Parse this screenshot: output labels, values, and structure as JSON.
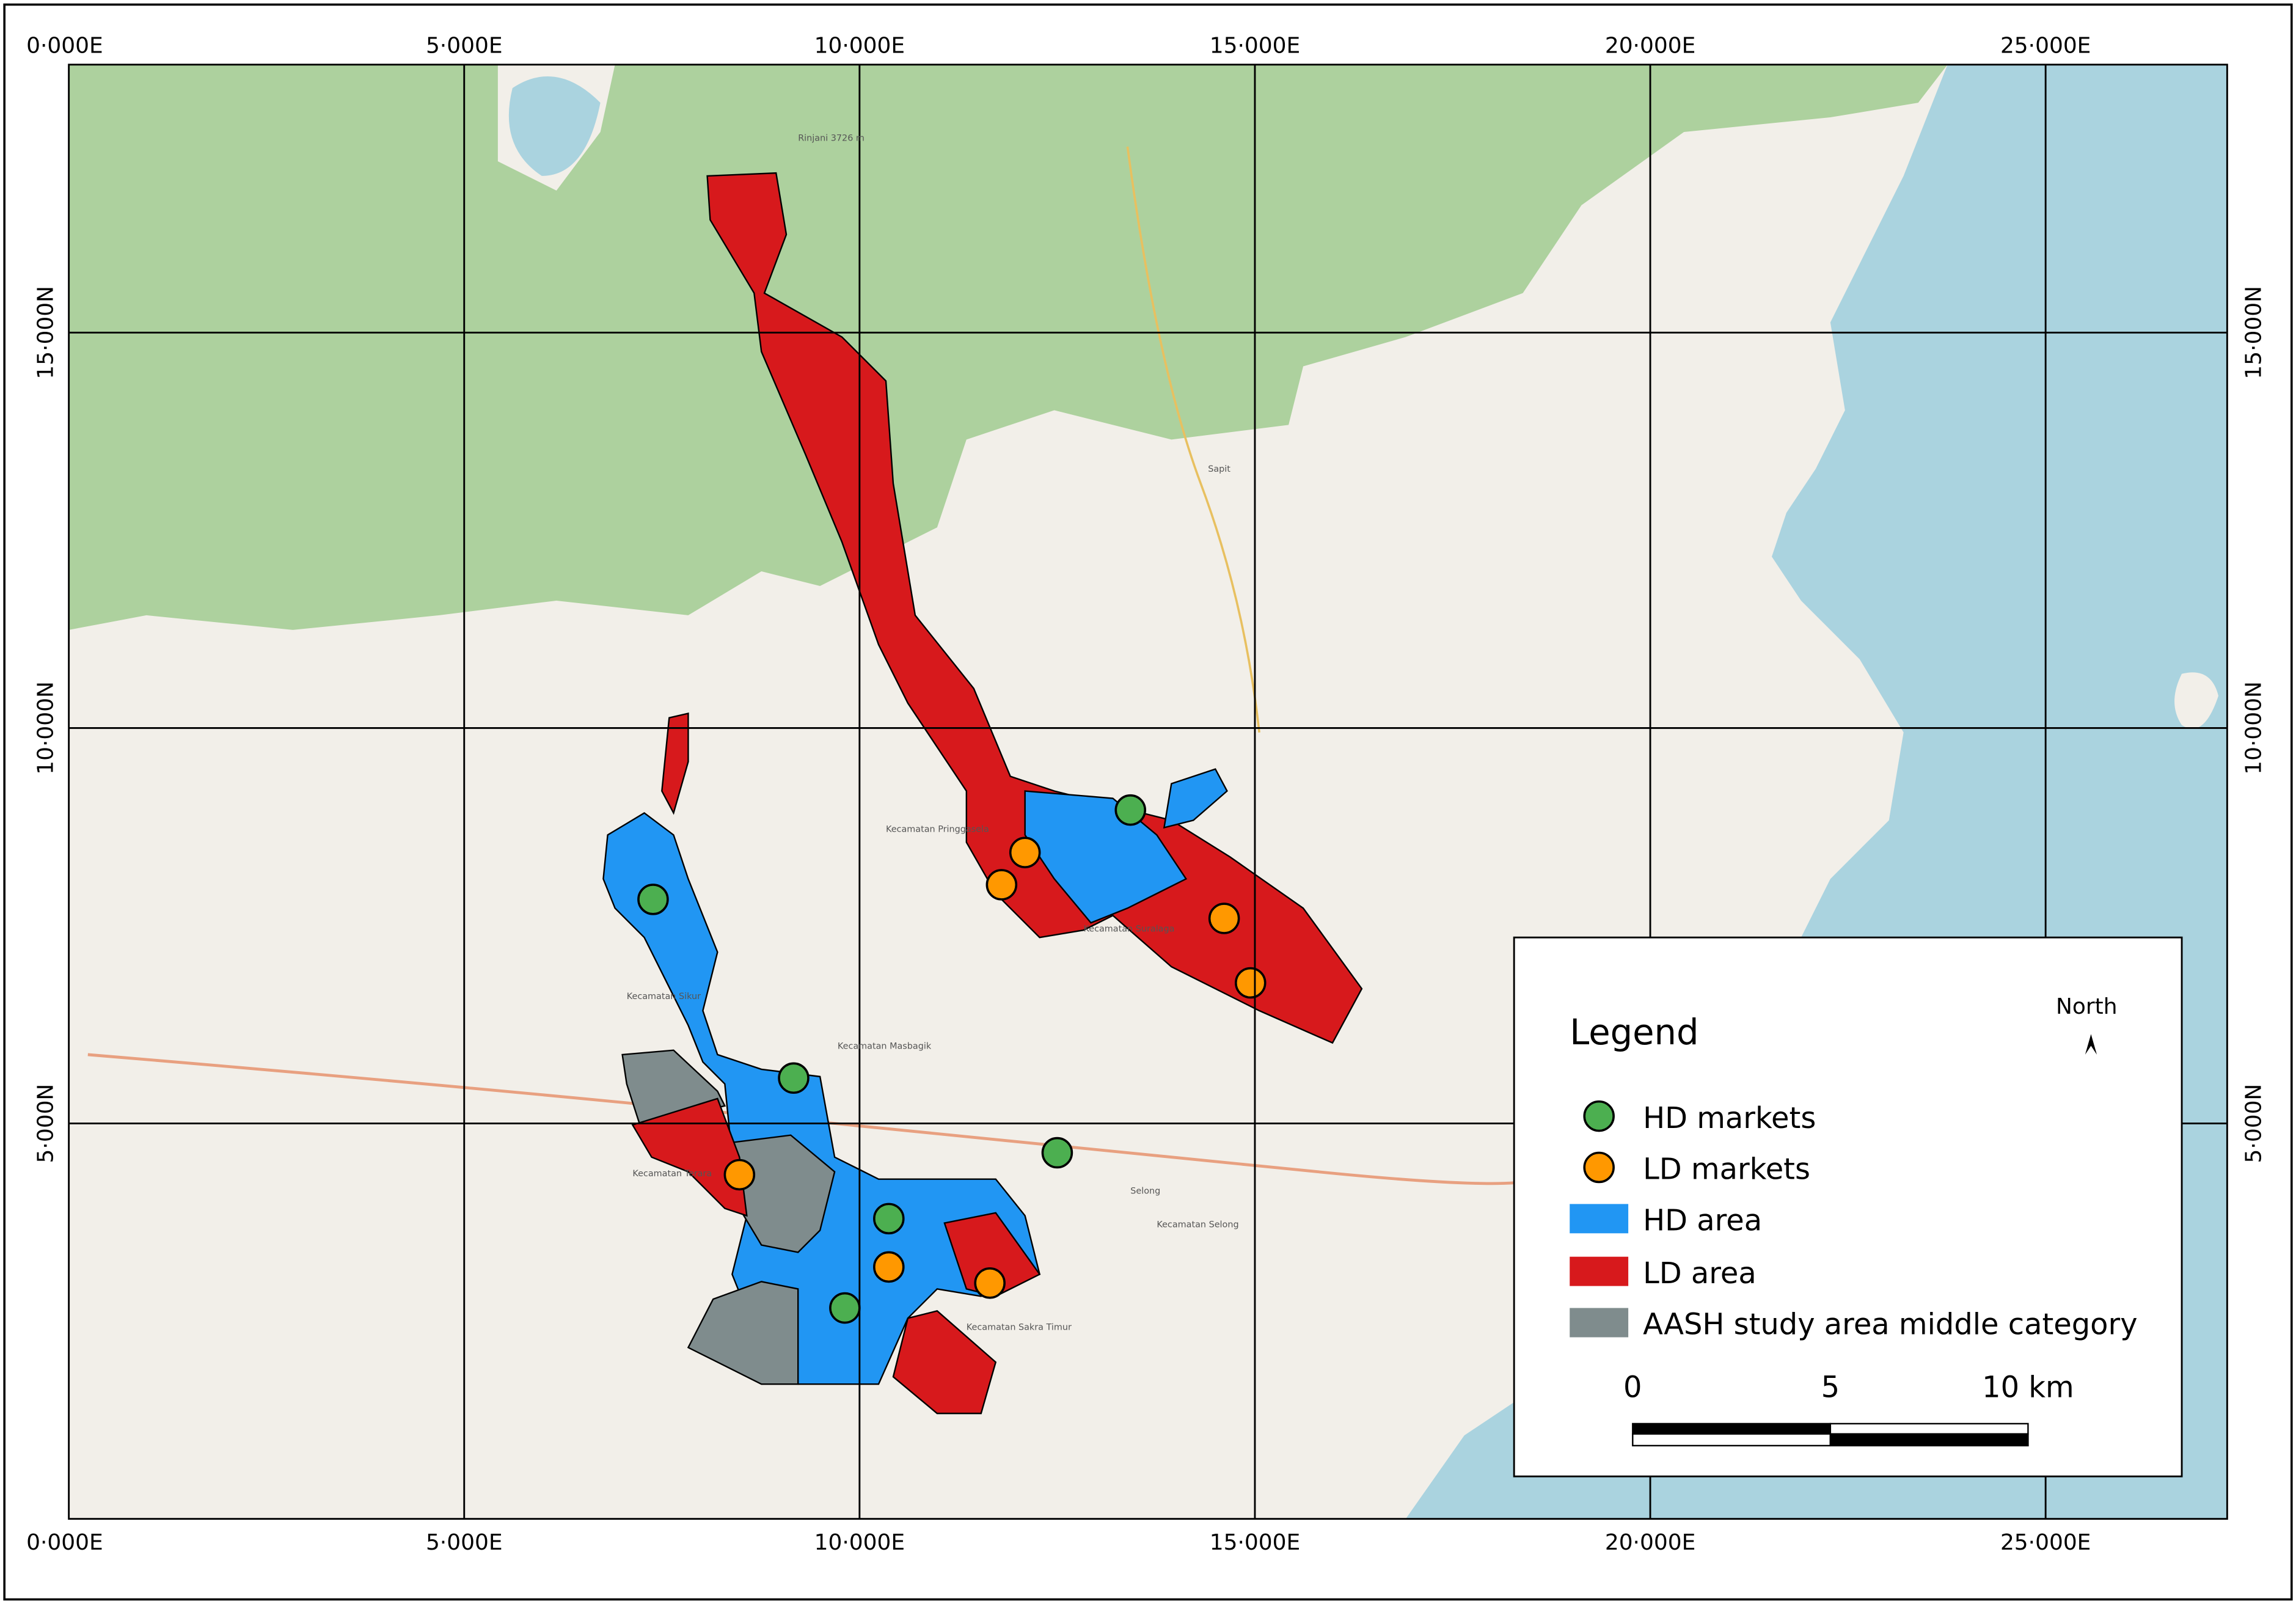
{
  "x_labels": [
    "0·000E",
    "5·000E",
    "10·000E",
    "15·000E",
    "20·000E",
    "25·000E"
  ],
  "y_labels": [
    "15·000N",
    "10·000N",
    "5·000N"
  ],
  "places": [
    "Kecamatan Selong",
    "Kecamatan Suralaga",
    "Kecamatan Masbagik",
    "Kecamatan Sikur",
    "Kecamatan Pringgasela",
    "Kecamatan Sakra Timur",
    "Kecamatan Terara",
    "Selong",
    "Sapit",
    "Rinjani 3726 m"
  ],
  "legend": {
    "title": "Legend",
    "items": [
      "HD markets",
      "LD markets",
      "HD area",
      "LD area",
      "AASH study area middle category"
    ]
  },
  "north": "North",
  "scale_bar": {
    "labels": [
      "0",
      "5",
      "10 km"
    ]
  }
}
